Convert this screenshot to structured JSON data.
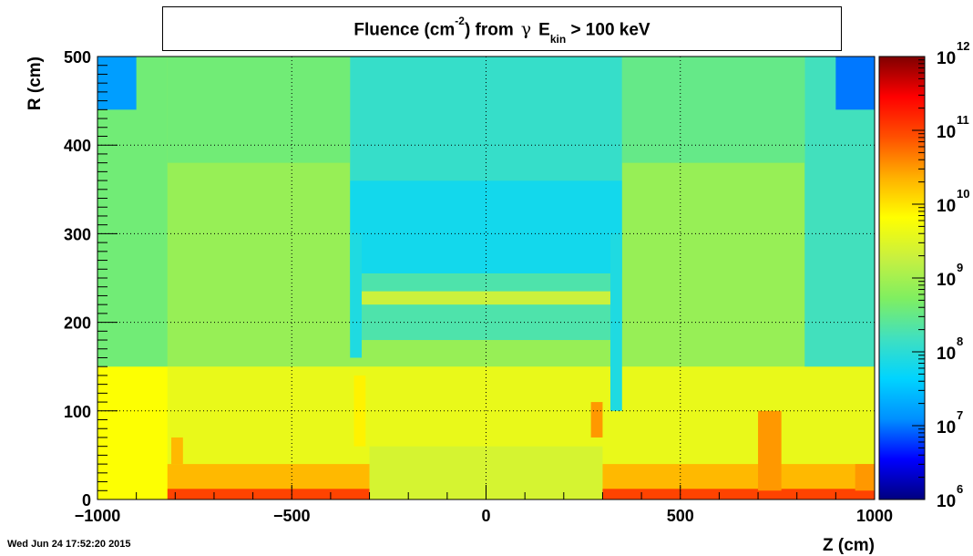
{
  "title": {
    "prefix": "Fluence (cm",
    "exponent": "-2",
    "middle": ") from",
    "particle": "γ",
    "e": "E",
    "e_sub": "kin",
    "suffix": "> 100 keV"
  },
  "timestamp": "Wed Jun 24 17:52:20 2015",
  "chart_data": {
    "type": "heatmap",
    "xlabel": "Z (cm)",
    "ylabel": "R (cm)",
    "xlim": [
      -1000,
      1000
    ],
    "ylim": [
      0,
      500
    ],
    "x_ticks": [
      -1000,
      -500,
      0,
      500,
      1000
    ],
    "x_tick_labels": [
      "−1000",
      "−500",
      "0",
      "500",
      "1000"
    ],
    "y_ticks": [
      0,
      100,
      200,
      300,
      400,
      500
    ],
    "y_tick_labels": [
      "0",
      "100",
      "200",
      "300",
      "400",
      "500"
    ],
    "grid": true,
    "z_scale": "log",
    "zlim": [
      1000000.0,
      1000000000000.0
    ],
    "colorbar_ticks": [
      {
        "base": "10",
        "exp": "6"
      },
      {
        "base": "10",
        "exp": "7"
      },
      {
        "base": "10",
        "exp": "8"
      },
      {
        "base": "10",
        "exp": "9"
      },
      {
        "base": "10",
        "exp": "10"
      },
      {
        "base": "10",
        "exp": "11"
      },
      {
        "base": "10",
        "exp": "12"
      }
    ],
    "colormap": [
      "#00007f",
      "#0000ff",
      "#0090ff",
      "#00d4ff",
      "#40e0c0",
      "#80ef60",
      "#c8f040",
      "#ffff00",
      "#ffb000",
      "#ff5000",
      "#ff0000",
      "#7f0000"
    ],
    "regions": [
      {
        "z": [
          -1000,
          1000
        ],
        "r": [
          0,
          500
        ],
        "log10": 8.9
      },
      {
        "z": [
          -1000,
          1000
        ],
        "r": [
          0,
          150
        ],
        "log10": 9.6
      },
      {
        "z": [
          -1000,
          1000
        ],
        "r": [
          0,
          40
        ],
        "log10": 10.3
      },
      {
        "z": [
          -1000,
          1000
        ],
        "r": [
          0,
          12
        ],
        "log10": 11.0
      },
      {
        "z": [
          -300,
          300
        ],
        "r": [
          0,
          60
        ],
        "log10": 9.4
      },
      {
        "z": [
          -1000,
          -820
        ],
        "r": [
          0,
          150
        ],
        "log10": 9.8
      },
      {
        "z": [
          -1000,
          -820
        ],
        "r": [
          150,
          500
        ],
        "log10": 8.6
      },
      {
        "z": [
          820,
          1000
        ],
        "r": [
          150,
          500
        ],
        "log10": 8.2
      },
      {
        "z": [
          -820,
          -350
        ],
        "r": [
          380,
          500
        ],
        "log10": 8.6
      },
      {
        "z": [
          350,
          820
        ],
        "r": [
          380,
          500
        ],
        "log10": 8.5
      },
      {
        "z": [
          -350,
          350
        ],
        "r": [
          360,
          500
        ],
        "log10": 8.1
      },
      {
        "z": [
          -1000,
          -900
        ],
        "r": [
          440,
          500
        ],
        "log10": 7.2
      },
      {
        "z": [
          900,
          1000
        ],
        "r": [
          440,
          500
        ],
        "log10": 7.0
      },
      {
        "z": [
          -350,
          350
        ],
        "r": [
          255,
          360
        ],
        "log10": 7.8
      },
      {
        "z": [
          -350,
          350
        ],
        "r": [
          180,
          255
        ],
        "log10": 8.3
      },
      {
        "z": [
          -340,
          340
        ],
        "r": [
          220,
          235
        ],
        "log10": 9.3
      },
      {
        "z": [
          -350,
          -320
        ],
        "r": [
          160,
          300
        ],
        "log10": 7.9
      },
      {
        "z": [
          320,
          350
        ],
        "r": [
          100,
          300
        ],
        "log10": 7.9
      },
      {
        "z": [
          -340,
          -310
        ],
        "r": [
          60,
          140
        ],
        "log10": 9.9
      },
      {
        "z": [
          270,
          300
        ],
        "r": [
          70,
          110
        ],
        "log10": 10.5
      },
      {
        "z": [
          700,
          760
        ],
        "r": [
          10,
          100
        ],
        "log10": 10.5
      },
      {
        "z": [
          -810,
          -780
        ],
        "r": [
          40,
          70
        ],
        "log10": 10.3
      },
      {
        "z": [
          950,
          1000
        ],
        "r": [
          10,
          40
        ],
        "log10": 10.5
      }
    ]
  }
}
